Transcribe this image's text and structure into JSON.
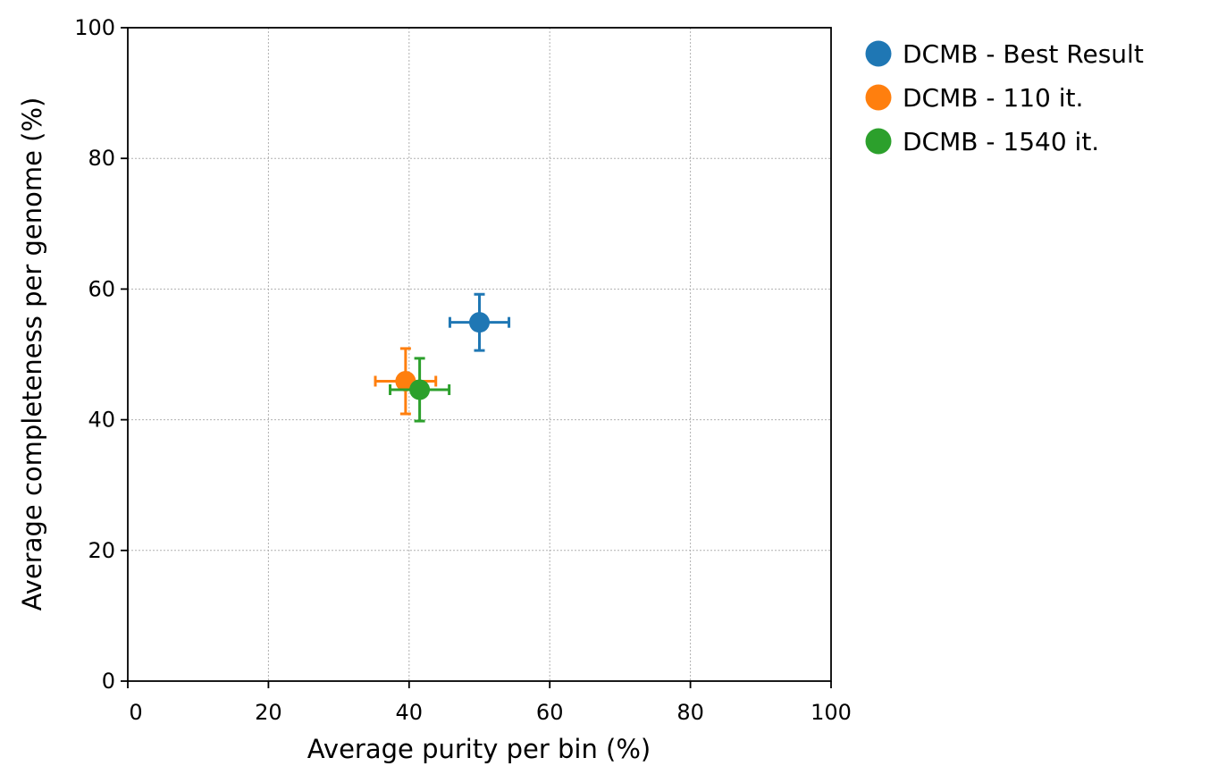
{
  "chart_data": {
    "type": "scatter",
    "xlabel": "Average purity per bin (%)",
    "ylabel": "Average completeness per genome (%)",
    "xlim": [
      0,
      100
    ],
    "ylim": [
      0,
      100
    ],
    "xticks": [
      0,
      20,
      40,
      60,
      80,
      100
    ],
    "yticks": [
      0,
      20,
      40,
      60,
      80,
      100
    ],
    "grid": true,
    "legend_position": "outside-top-right",
    "error_bars": true,
    "series": [
      {
        "name": "DCMB - Best Result",
        "color": "#1f77b4",
        "points": [
          {
            "x": 50.0,
            "y": 54.9,
            "xerr": 4.2,
            "yerr": 4.3
          }
        ]
      },
      {
        "name": "DCMB - 110 it.",
        "color": "#ff7f0e",
        "points": [
          {
            "x": 39.5,
            "y": 45.9,
            "xerr": 4.3,
            "yerr": 5.0
          }
        ]
      },
      {
        "name": "DCMB - 1540 it.",
        "color": "#2ca02c",
        "points": [
          {
            "x": 41.5,
            "y": 44.6,
            "xerr": 4.2,
            "yerr": 4.8
          }
        ]
      }
    ]
  }
}
